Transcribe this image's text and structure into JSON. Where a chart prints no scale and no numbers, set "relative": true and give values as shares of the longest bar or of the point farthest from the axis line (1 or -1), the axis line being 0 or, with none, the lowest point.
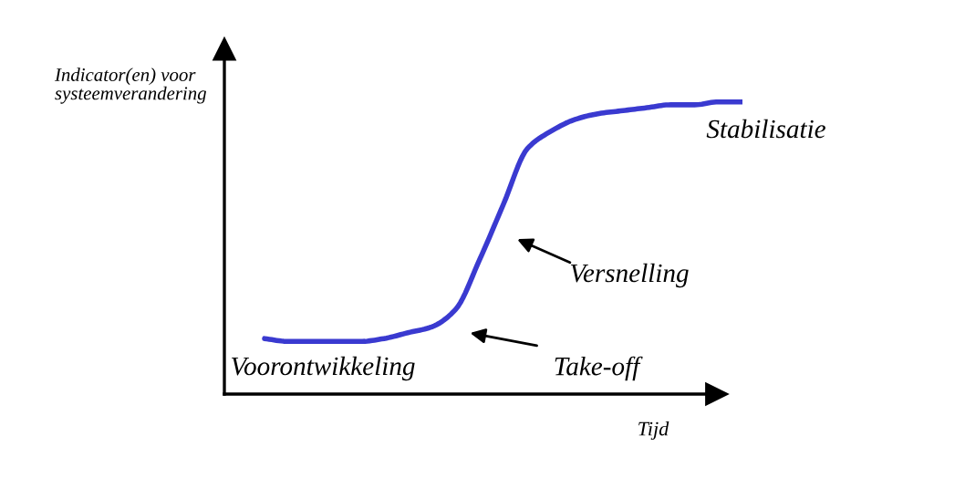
{
  "chart_data": {
    "type": "line",
    "relative": true,
    "ylabel": "Indicator(en) voor\nsysteemverandering",
    "xlabel": "Tijd",
    "categories": [
      null,
      null,
      null,
      null,
      null,
      null,
      null,
      null,
      null,
      null,
      null,
      null,
      null,
      null,
      null,
      null,
      null,
      null,
      null,
      null,
      null
    ],
    "series": [
      {
        "color": "#3a3ad0",
        "values": [
          0.19,
          0.18,
          0.18,
          0.18,
          0.18,
          0.19,
          0.21,
          0.23,
          0.29,
          0.46,
          0.65,
          0.84,
          0.9,
          0.94,
          0.96,
          0.97,
          0.98,
          0.99,
          0.99,
          1.0,
          1.0
        ]
      }
    ],
    "annotations": [
      "Voorontwikkeling",
      "Take-off",
      "Versnelling",
      "Stabilisatie"
    ],
    "legend": false,
    "marker": "none",
    "line_style": "solid"
  }
}
